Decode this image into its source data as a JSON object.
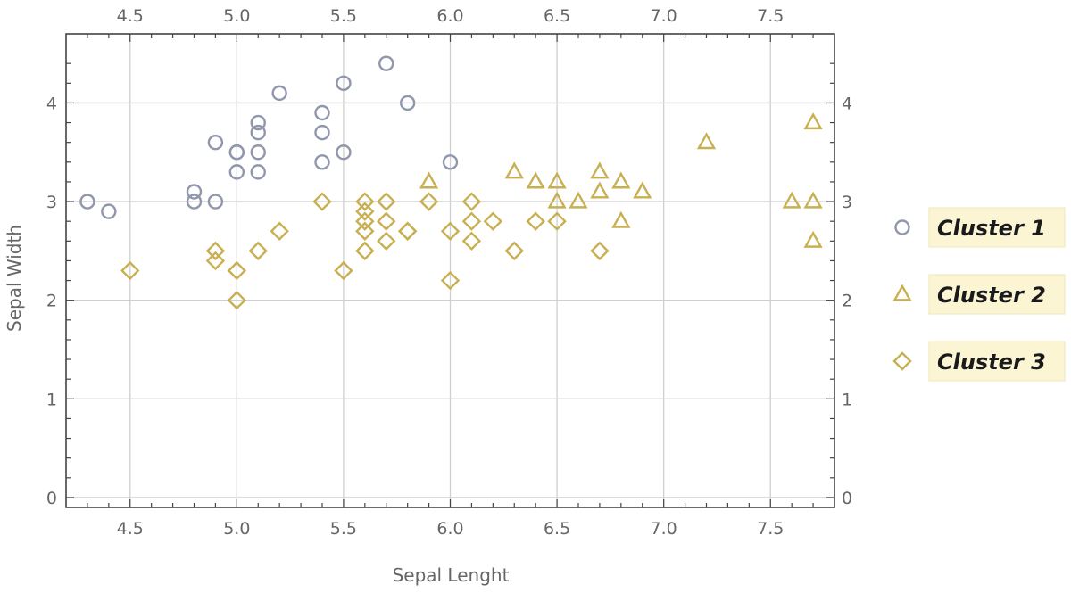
{
  "chart_data": {
    "type": "scatter",
    "title": "",
    "xlabel": "Sepal Lenght",
    "ylabel": "Sepal Width",
    "xlim": [
      4.2,
      7.8
    ],
    "ylim": [
      -0.1,
      4.7
    ],
    "x_ticks": [
      4.5,
      5.0,
      5.5,
      6.0,
      6.5,
      7.0,
      7.5
    ],
    "x_tick_labels": [
      "4.5",
      "5.0",
      "5.5",
      "6.0",
      "6.5",
      "7.0",
      "7.5"
    ],
    "y_ticks": [
      0,
      1,
      2,
      3,
      4
    ],
    "y_tick_labels": [
      "0",
      "1",
      "2",
      "3",
      "4"
    ],
    "grid": true,
    "legend_position": "right",
    "series": [
      {
        "name": "Cluster 1",
        "marker": "circle",
        "color": "#9097ad",
        "points": [
          [
            4.3,
            3.0
          ],
          [
            4.4,
            2.9
          ],
          [
            4.8,
            3.1
          ],
          [
            4.8,
            3.0
          ],
          [
            4.9,
            3.6
          ],
          [
            4.9,
            3.0
          ],
          [
            5.0,
            3.5
          ],
          [
            5.0,
            3.5
          ],
          [
            5.0,
            3.3
          ],
          [
            5.1,
            3.8
          ],
          [
            5.1,
            3.7
          ],
          [
            5.1,
            3.5
          ],
          [
            5.1,
            3.3
          ],
          [
            5.2,
            4.1
          ],
          [
            5.4,
            3.9
          ],
          [
            5.4,
            3.7
          ],
          [
            5.4,
            3.4
          ],
          [
            5.5,
            4.2
          ],
          [
            5.5,
            3.5
          ],
          [
            5.7,
            4.4
          ],
          [
            5.8,
            4.0
          ],
          [
            6.0,
            3.4
          ]
        ]
      },
      {
        "name": "Cluster 2",
        "marker": "triangle",
        "color": "#c8b052",
        "points": [
          [
            5.9,
            3.2
          ],
          [
            6.3,
            3.3
          ],
          [
            6.4,
            3.2
          ],
          [
            6.5,
            3.2
          ],
          [
            6.5,
            3.0
          ],
          [
            6.6,
            3.0
          ],
          [
            6.7,
            3.3
          ],
          [
            6.7,
            3.1
          ],
          [
            6.8,
            3.2
          ],
          [
            6.8,
            2.8
          ],
          [
            6.9,
            3.1
          ],
          [
            7.2,
            3.6
          ],
          [
            7.6,
            3.0
          ],
          [
            7.7,
            3.8
          ],
          [
            7.7,
            3.0
          ],
          [
            7.7,
            2.6
          ]
        ]
      },
      {
        "name": "Cluster 3",
        "marker": "diamond",
        "color": "#c8b052",
        "points": [
          [
            4.5,
            2.3
          ],
          [
            4.9,
            2.5
          ],
          [
            4.9,
            2.4
          ],
          [
            5.0,
            2.3
          ],
          [
            5.0,
            2.0
          ],
          [
            5.1,
            2.5
          ],
          [
            5.2,
            2.7
          ],
          [
            5.4,
            3.0
          ],
          [
            5.5,
            2.3
          ],
          [
            5.6,
            3.0
          ],
          [
            5.6,
            2.9
          ],
          [
            5.6,
            2.8
          ],
          [
            5.6,
            2.7
          ],
          [
            5.6,
            2.5
          ],
          [
            5.7,
            3.0
          ],
          [
            5.7,
            2.8
          ],
          [
            5.7,
            2.6
          ],
          [
            5.8,
            2.7
          ],
          [
            5.8,
            2.7
          ],
          [
            5.9,
            3.0
          ],
          [
            6.0,
            2.7
          ],
          [
            6.0,
            2.2
          ],
          [
            6.1,
            3.0
          ],
          [
            6.1,
            2.8
          ],
          [
            6.1,
            2.6
          ],
          [
            6.2,
            2.8
          ],
          [
            6.3,
            2.5
          ],
          [
            6.4,
            2.8
          ],
          [
            6.5,
            2.8
          ],
          [
            6.7,
            2.5
          ]
        ]
      }
    ]
  },
  "legend": {
    "items": [
      {
        "label": "Cluster 1",
        "marker": "circle",
        "color": "#9097ad"
      },
      {
        "label": "Cluster 2",
        "marker": "triangle",
        "color": "#c8b052"
      },
      {
        "label": "Cluster 3",
        "marker": "diamond",
        "color": "#c8b052"
      }
    ],
    "label_background": "#fbf5d3"
  }
}
